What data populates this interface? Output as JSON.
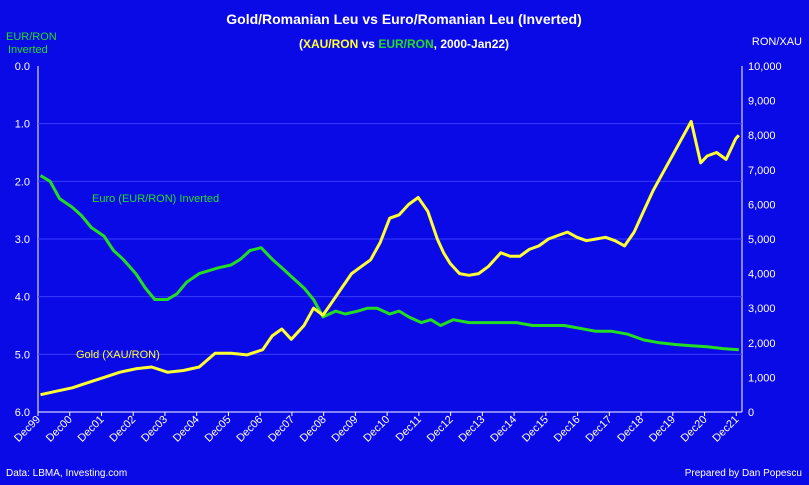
{
  "chart_data": {
    "type": "line",
    "title": "Gold/Romanian Leu vs Euro/Romanian Leu (Inverted)",
    "subtitle": {
      "open": "(",
      "gold_series": "XAU/RON",
      "vs": " vs ",
      "euro_series": "EUR/RON",
      "range": ", 2000-Jan22)"
    },
    "left_axis": {
      "label_line1": "EUR/RON",
      "label_line2": "Inverted",
      "inverted": true,
      "range": [
        0,
        6
      ],
      "ticks": [
        "0.0",
        "1.0",
        "2.0",
        "3.0",
        "4.0",
        "5.0",
        "6.0"
      ]
    },
    "right_axis": {
      "label": "RON/XAU",
      "range": [
        0,
        10000
      ],
      "ticks": [
        "0",
        "1,000",
        "2,000",
        "3,000",
        "4,000",
        "5,000",
        "6,000",
        "7,000",
        "8,000",
        "9,000",
        "10,000"
      ]
    },
    "x_ticks": [
      "Dec99",
      "Dec00",
      "Dec01",
      "Dec02",
      "Dec03",
      "Dec04",
      "Dec05",
      "Dec06",
      "Dec07",
      "Dec08",
      "Dec09",
      "Dec10",
      "Dec11",
      "Dec12",
      "Dec13",
      "Dec14",
      "Dec15",
      "Dec16",
      "Dec17",
      "Dec18",
      "Dec19",
      "Dec20",
      "Dec21"
    ],
    "x_range": [
      1999.92,
      2022.1
    ],
    "grid": "horizontal",
    "series": [
      {
        "name": "Euro (EUR/RON) Inverted",
        "axis": "left",
        "color": "#22dd22",
        "x": [
          2000.0,
          2000.3,
          2000.6,
          2001.0,
          2001.3,
          2001.6,
          2002.0,
          2002.3,
          2002.6,
          2003.0,
          2003.3,
          2003.6,
          2004.0,
          2004.3,
          2004.6,
          2005.0,
          2005.3,
          2005.6,
          2006.0,
          2006.3,
          2006.6,
          2006.95,
          2007.3,
          2007.6,
          2007.9,
          2008.3,
          2008.6,
          2008.9,
          2009.3,
          2009.6,
          2010.0,
          2010.3,
          2010.6,
          2011.0,
          2011.3,
          2011.6,
          2012.0,
          2012.3,
          2012.6,
          2013.0,
          2013.5,
          2014.0,
          2014.5,
          2015.0,
          2015.5,
          2016.0,
          2016.5,
          2017.0,
          2017.5,
          2018.0,
          2018.5,
          2019.0,
          2019.5,
          2020.0,
          2020.5,
          2021.0,
          2021.5,
          2022.0
        ],
        "values": [
          1.9,
          2.0,
          2.3,
          2.45,
          2.6,
          2.8,
          2.95,
          3.2,
          3.35,
          3.6,
          3.85,
          4.05,
          4.05,
          3.95,
          3.75,
          3.6,
          3.55,
          3.5,
          3.45,
          3.35,
          3.2,
          3.15,
          3.35,
          3.5,
          3.65,
          3.85,
          4.05,
          4.35,
          4.25,
          4.3,
          4.25,
          4.2,
          4.2,
          4.3,
          4.25,
          4.35,
          4.45,
          4.4,
          4.5,
          4.4,
          4.45,
          4.45,
          4.45,
          4.45,
          4.5,
          4.5,
          4.5,
          4.55,
          4.6,
          4.6,
          4.65,
          4.75,
          4.8,
          4.83,
          4.85,
          4.87,
          4.9,
          4.92
        ]
      },
      {
        "name": "Gold (XAU/RON)",
        "axis": "right",
        "color": "#ffff33",
        "x": [
          2000.0,
          2000.5,
          2001.0,
          2001.5,
          2002.0,
          2002.5,
          2003.0,
          2003.5,
          2004.0,
          2004.5,
          2005.0,
          2005.5,
          2006.0,
          2006.5,
          2007.0,
          2007.3,
          2007.6,
          2007.9,
          2008.3,
          2008.6,
          2008.9,
          2009.2,
          2009.5,
          2009.8,
          2010.1,
          2010.4,
          2010.7,
          2011.0,
          2011.3,
          2011.6,
          2011.9,
          2012.2,
          2012.5,
          2012.7,
          2012.9,
          2013.2,
          2013.5,
          2013.8,
          2014.1,
          2014.5,
          2014.8,
          2015.1,
          2015.4,
          2015.7,
          2016.0,
          2016.3,
          2016.6,
          2016.9,
          2017.2,
          2017.5,
          2017.8,
          2018.1,
          2018.4,
          2018.7,
          2019.0,
          2019.3,
          2019.6,
          2019.9,
          2020.2,
          2020.5,
          2020.8,
          2021.0,
          2021.3,
          2021.6,
          2021.9,
          2022.0
        ],
        "values": [
          500,
          600,
          700,
          850,
          1000,
          1150,
          1250,
          1300,
          1150,
          1200,
          1300,
          1700,
          1700,
          1650,
          1800,
          2200,
          2400,
          2100,
          2500,
          3000,
          2800,
          3200,
          3600,
          4000,
          4200,
          4400,
          4900,
          5600,
          5700,
          6000,
          6200,
          5800,
          5000,
          4600,
          4300,
          4000,
          3950,
          4000,
          4200,
          4600,
          4500,
          4500,
          4700,
          4800,
          5000,
          5100,
          5200,
          5050,
          4950,
          5000,
          5050,
          4950,
          4800,
          5200,
          5800,
          6400,
          6900,
          7400,
          7900,
          8400,
          7200,
          7400,
          7500,
          7300,
          7900,
          8000
        ]
      }
    ],
    "annotations": [
      {
        "text": "Euro (EUR/RON) Inverted",
        "color": "#22dd22"
      },
      {
        "text": "Gold (XAU/RON)",
        "color": "#ffff33"
      }
    ],
    "footer_left": "Data: LBMA, Investing.com",
    "footer_right": "Prepared by Dan Popescu"
  }
}
